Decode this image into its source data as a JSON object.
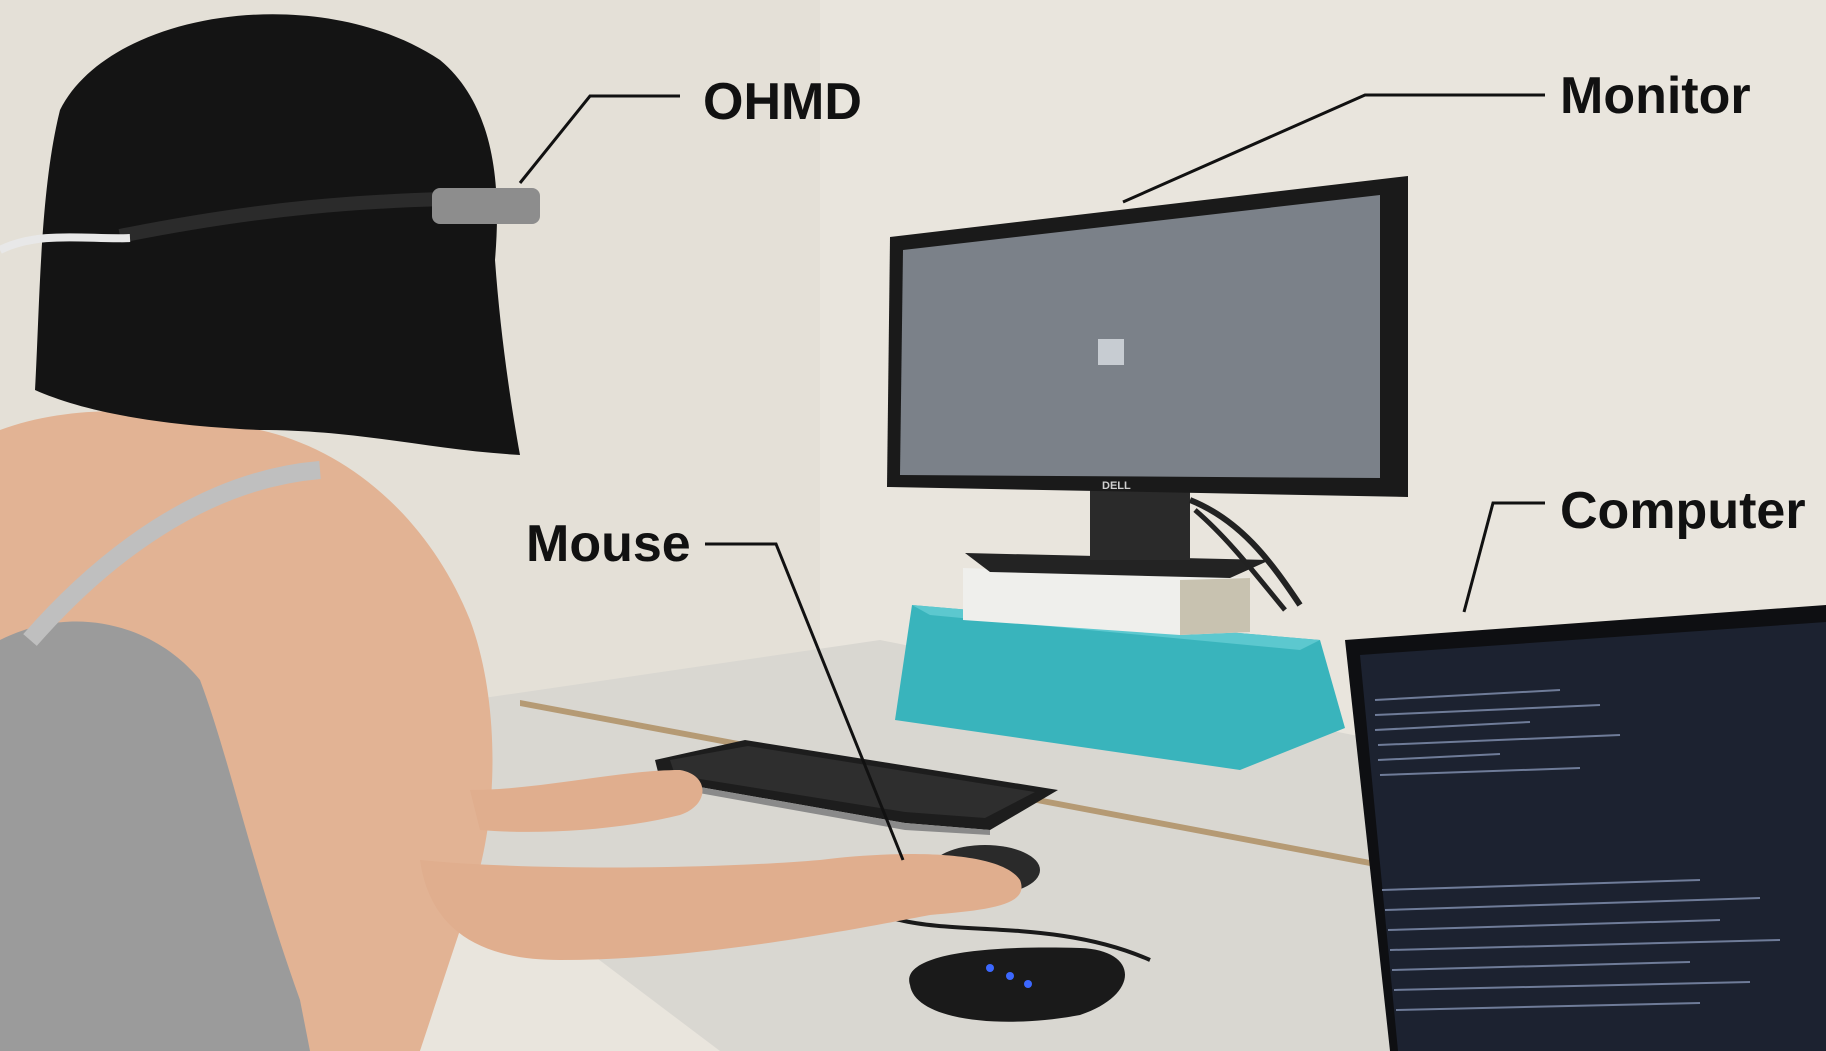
{
  "labels": {
    "ohmd": "OHMD",
    "monitor": "Monitor",
    "mouse": "Mouse",
    "computer": "Computer"
  },
  "monitor_brand": "DELL",
  "colors": {
    "wall": "#e8e4dc",
    "desk": "#d8d6d0",
    "stand": "#39b4bc",
    "hair": "#141414",
    "skin": "#e0b090",
    "top": "#9a9a9a",
    "screen": "#7a8088",
    "laptop_screen": "#1c2028"
  }
}
